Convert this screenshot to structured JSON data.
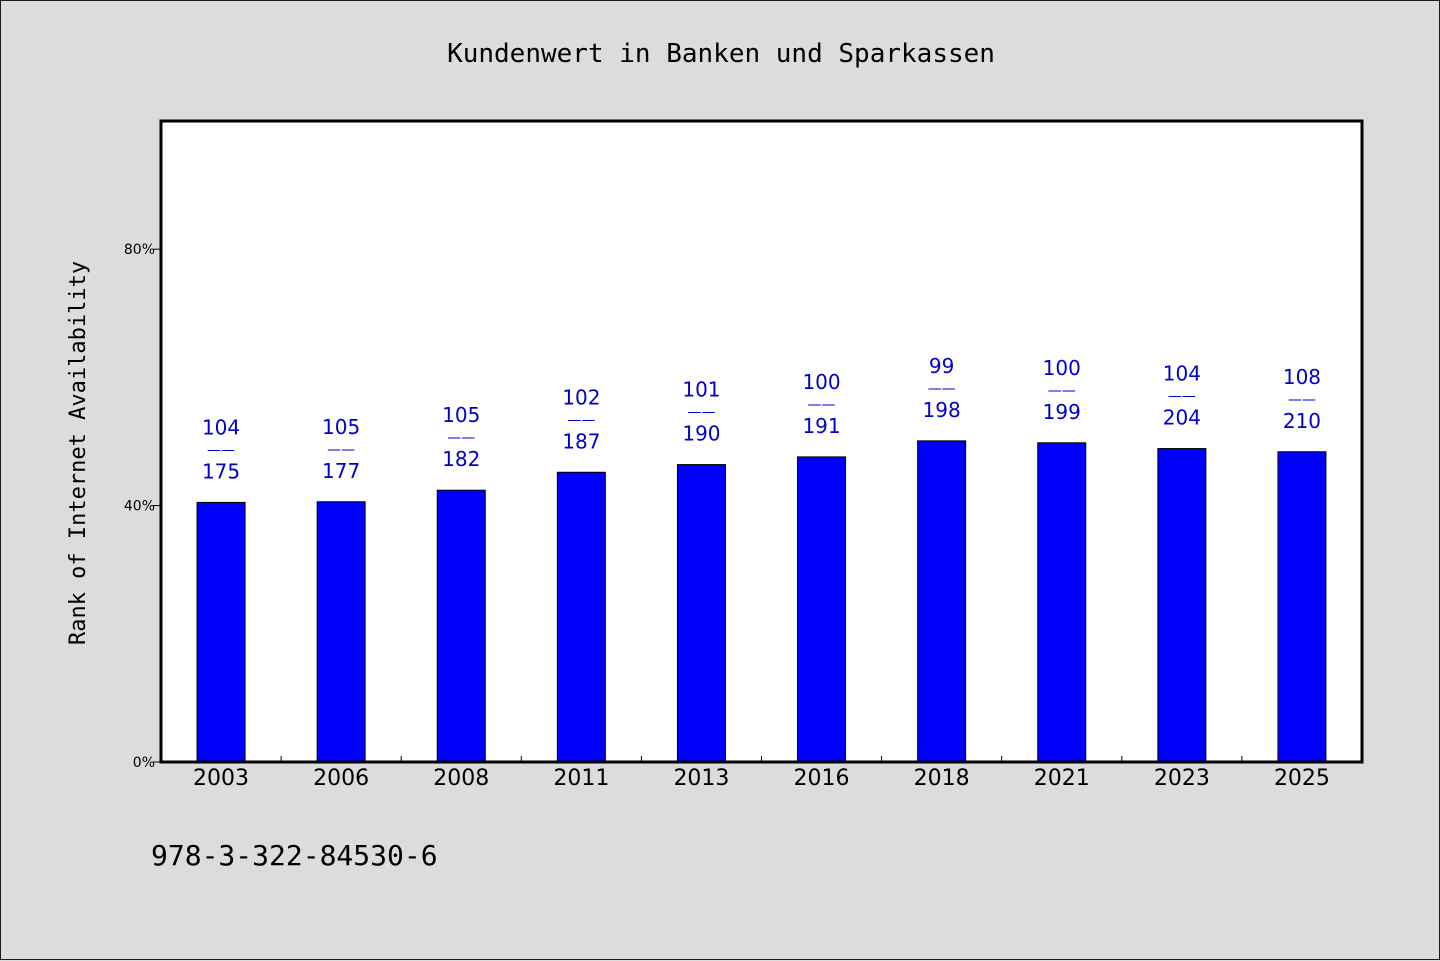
{
  "chart_data": {
    "type": "bar",
    "title": "Kundenwert in Banken und Sparkassen",
    "ylabel": "Rank of Internet Availability",
    "xlabel": "",
    "categories": [
      "2003",
      "2006",
      "2008",
      "2011",
      "2013",
      "2016",
      "2018",
      "2021",
      "2023",
      "2025"
    ],
    "values": [
      40.5,
      40.6,
      42.4,
      45.2,
      46.4,
      47.6,
      50.1,
      49.8,
      48.9,
      48.4
    ],
    "labels_top": [
      "104",
      "105",
      "105",
      "102",
      "101",
      "100",
      "99",
      "100",
      "104",
      "108"
    ],
    "labels_bottom": [
      "175",
      "177",
      "182",
      "187",
      "190",
      "191",
      "198",
      "199",
      "204",
      "210"
    ],
    "label_separator": "——",
    "ylim": [
      0,
      100
    ],
    "yticks": [
      0,
      40,
      80
    ],
    "ytick_labels": [
      "0%",
      "40%",
      "80%"
    ],
    "grid": false,
    "legend": "none",
    "colors": {
      "bar": "#0000ff",
      "label": "#0000cc",
      "background": "#dcdcdc",
      "plot_background": "#ffffff"
    }
  },
  "footer": {
    "isbn": "978-3-322-84530-6"
  }
}
